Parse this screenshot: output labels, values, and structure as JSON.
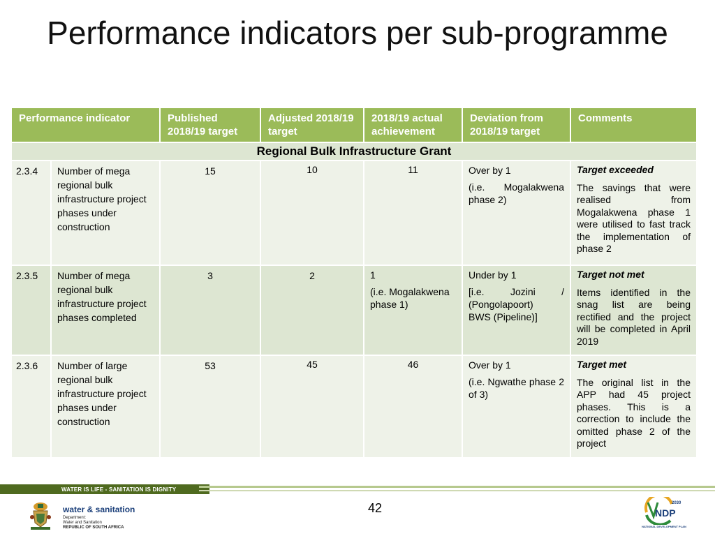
{
  "title": "Performance indicators per sub-programme",
  "table": {
    "headers": [
      "Performance indicator",
      "Published 2018/19 target",
      "Adjusted 2018/19 target",
      "2018/19 actual achievement",
      "Deviation from 2018/19 target",
      "Comments"
    ],
    "section_title": "Regional Bulk Infrastructure Grant",
    "rows": [
      {
        "code": "2.3.4",
        "indicator": "Number of mega regional bulk infrastructure project phases under construction",
        "published": "15",
        "adjusted": "10",
        "actual": "11",
        "actual_note": "",
        "deviation": [
          "Over by 1",
          "(i.e. Mogalakwena phase 2)"
        ],
        "comment_status": "Target exceeded",
        "comment": "The savings that were realised from Mogalakwena phase 1 were utilised to fast track the implementation of phase 2"
      },
      {
        "code": "2.3.5",
        "indicator": "Number of mega regional bulk infrastructure project phases completed",
        "published": "3",
        "adjusted": "2",
        "actual": "1",
        "actual_note": "(i.e. Mogalakwena phase 1)",
        "deviation": [
          "Under by 1",
          "[i.e. Jozini / (Pongolapoort)",
          "BWS (Pipeline)]"
        ],
        "comment_status": "Target not met",
        "comment": "Items identified in the snag list are being rectified and the project will be completed in April 2019"
      },
      {
        "code": "2.3.6",
        "indicator": "Number of large regional bulk infrastructure project phases under construction",
        "published": "53",
        "adjusted": "45",
        "actual": "46",
        "actual_note": "",
        "deviation": [
          "Over by 1",
          "(i.e. Ngwathe phase 2 of 3)"
        ],
        "comment_status": "Target met",
        "comment": "The original list in the APP had 45 project phases. This is a correction to include the omitted phase 2 of the project"
      }
    ]
  },
  "footer": {
    "slogan": "WATER IS LIFE - SANITATION IS DIGNITY",
    "dept_logo_name": "water & sanitation",
    "dept_lines": [
      "Department:",
      "Water and Sanitation",
      "REPUBLIC OF SOUTH AFRICA"
    ],
    "page_number": "42",
    "ndp_label": "NATIONAL DEVELOPMENT PLAN",
    "ndp_year": "2030",
    "ndp_short": "NDP"
  },
  "colors": {
    "header_green": "#9bbb59",
    "footer_dark_green": "#4f6a1f",
    "row_light": "#eef2e8",
    "row_mid": "#dde6d2"
  }
}
